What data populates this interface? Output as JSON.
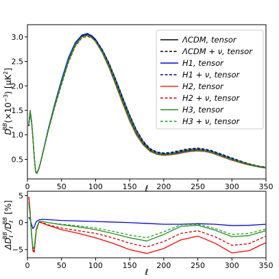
{
  "chart_data": [
    {
      "type": "line",
      "id": "top",
      "ylabel": "Dℓ^{BB}(×10⁻³) [μK²]",
      "ylabel_parts": {
        "main": "D",
        "sub": "ℓ",
        "sup": "BB",
        "rest": "(×10",
        "rest_sup": "−3",
        "rest2": ") [μK",
        "rest2_sup": "2",
        "rest3": "]"
      },
      "xlabel": "ℓ",
      "xlim": [
        0,
        350
      ],
      "ylim": [
        0.1,
        3.25
      ],
      "xticks": [
        0,
        50,
        100,
        150,
        200,
        250,
        300,
        350
      ],
      "yticks": [
        0.5,
        1.0,
        1.5,
        2.0,
        2.5,
        3.0
      ],
      "xtick_labels": [
        "0",
        "50",
        "100",
        "150",
        "200",
        "250",
        "300",
        "350"
      ],
      "ytick_labels": [
        "0.5",
        "1.0",
        "1.5",
        "2.0",
        "2.5",
        "3.0"
      ],
      "legend_position": "upper-right",
      "series": [
        {
          "name": "ΛCDM, tensor",
          "label_html": "ΛCDM, tensor",
          "color": "#000000",
          "dash": "solid",
          "x": [
            2,
            4,
            6,
            8,
            10,
            12,
            14,
            17,
            20,
            25,
            30,
            40,
            50,
            60,
            70,
            80,
            88,
            95,
            100,
            110,
            120,
            130,
            140,
            150,
            160,
            170,
            180,
            190,
            200,
            210,
            220,
            230,
            240,
            250,
            260,
            270,
            280,
            290,
            300,
            310,
            320,
            330,
            340,
            350
          ],
          "y": [
            1.18,
            1.45,
            1.28,
            0.95,
            0.55,
            0.25,
            0.22,
            0.32,
            0.48,
            0.78,
            1.08,
            1.62,
            2.1,
            2.55,
            2.86,
            3.02,
            3.05,
            3.0,
            2.93,
            2.7,
            2.4,
            2.05,
            1.68,
            1.33,
            1.03,
            0.82,
            0.68,
            0.62,
            0.6,
            0.61,
            0.63,
            0.66,
            0.68,
            0.69,
            0.68,
            0.65,
            0.6,
            0.55,
            0.5,
            0.45,
            0.41,
            0.38,
            0.35,
            0.33
          ]
        },
        {
          "name": "ΛCDM + ν, tensor",
          "color": "#000000",
          "dash": "dashed",
          "x": [
            2,
            4,
            6,
            8,
            10,
            12,
            14,
            17,
            20,
            25,
            30,
            40,
            50,
            60,
            70,
            80,
            88,
            95,
            100,
            110,
            120,
            130,
            140,
            150,
            160,
            170,
            180,
            190,
            200,
            210,
            220,
            230,
            240,
            250,
            260,
            270,
            280,
            290,
            300,
            310,
            320,
            330,
            340,
            350
          ],
          "y": [
            1.18,
            1.45,
            1.28,
            0.95,
            0.55,
            0.25,
            0.22,
            0.32,
            0.48,
            0.77,
            1.06,
            1.58,
            2.05,
            2.5,
            2.82,
            3.0,
            3.03,
            2.99,
            2.94,
            2.73,
            2.45,
            2.11,
            1.75,
            1.4,
            1.09,
            0.86,
            0.71,
            0.64,
            0.62,
            0.63,
            0.66,
            0.69,
            0.71,
            0.72,
            0.7,
            0.67,
            0.62,
            0.57,
            0.52,
            0.47,
            0.43,
            0.39,
            0.36,
            0.34
          ]
        },
        {
          "name": "H1, tensor",
          "color": "#0000ff",
          "dash": "solid",
          "x": [
            2,
            4,
            6,
            8,
            10,
            12,
            14,
            17,
            20,
            25,
            30,
            40,
            50,
            60,
            70,
            80,
            88,
            95,
            100,
            110,
            120,
            130,
            140,
            150,
            160,
            170,
            180,
            190,
            200,
            210,
            220,
            230,
            240,
            250,
            260,
            270,
            280,
            290,
            300,
            310,
            320,
            330,
            340,
            350
          ],
          "y": [
            1.19,
            1.46,
            1.28,
            0.95,
            0.55,
            0.25,
            0.22,
            0.32,
            0.48,
            0.78,
            1.09,
            1.63,
            2.12,
            2.57,
            2.88,
            3.04,
            3.07,
            3.02,
            2.95,
            2.72,
            2.42,
            2.07,
            1.7,
            1.34,
            1.04,
            0.83,
            0.69,
            0.63,
            0.61,
            0.62,
            0.64,
            0.67,
            0.69,
            0.7,
            0.69,
            0.66,
            0.61,
            0.56,
            0.51,
            0.46,
            0.42,
            0.38,
            0.35,
            0.33
          ]
        },
        {
          "name": "H1 + ν, tensor",
          "color": "#000080",
          "dash": "dashed",
          "x": [
            2,
            4,
            6,
            8,
            10,
            12,
            14,
            17,
            20,
            25,
            30,
            40,
            50,
            60,
            70,
            80,
            88,
            95,
            100,
            110,
            120,
            130,
            140,
            150,
            160,
            170,
            180,
            190,
            200,
            210,
            220,
            230,
            240,
            250,
            260,
            270,
            280,
            290,
            300,
            310,
            320,
            330,
            340,
            350
          ],
          "y": [
            1.19,
            1.46,
            1.28,
            0.95,
            0.55,
            0.25,
            0.22,
            0.32,
            0.48,
            0.77,
            1.07,
            1.59,
            2.06,
            2.51,
            2.83,
            3.01,
            3.04,
            3.0,
            2.95,
            2.74,
            2.46,
            2.12,
            1.76,
            1.41,
            1.1,
            0.87,
            0.72,
            0.65,
            0.63,
            0.64,
            0.67,
            0.7,
            0.72,
            0.73,
            0.71,
            0.68,
            0.63,
            0.58,
            0.53,
            0.48,
            0.43,
            0.39,
            0.36,
            0.34
          ]
        },
        {
          "name": "H2, tensor",
          "color": "#ff2020",
          "dash": "solid",
          "x": [
            2,
            4,
            6,
            8,
            10,
            12,
            14,
            17,
            20,
            25,
            30,
            40,
            50,
            60,
            70,
            80,
            88,
            95,
            100,
            110,
            120,
            130,
            140,
            150,
            160,
            170,
            180,
            190,
            200,
            210,
            220,
            230,
            240,
            250,
            260,
            270,
            280,
            290,
            300,
            310,
            320,
            330,
            340,
            350
          ],
          "y": [
            1.22,
            1.5,
            1.3,
            0.96,
            0.55,
            0.24,
            0.21,
            0.31,
            0.47,
            0.77,
            1.07,
            1.6,
            2.07,
            2.52,
            2.84,
            3.0,
            3.03,
            2.98,
            2.9,
            2.67,
            2.36,
            2.0,
            1.63,
            1.28,
            0.99,
            0.79,
            0.66,
            0.6,
            0.58,
            0.59,
            0.61,
            0.64,
            0.66,
            0.67,
            0.66,
            0.63,
            0.58,
            0.53,
            0.48,
            0.44,
            0.4,
            0.37,
            0.34,
            0.32
          ]
        },
        {
          "name": "H2 + ν, tensor",
          "color": "#cc0000",
          "dash": "dashed",
          "x": [
            2,
            4,
            6,
            8,
            10,
            12,
            14,
            17,
            20,
            25,
            30,
            40,
            50,
            60,
            70,
            80,
            88,
            95,
            100,
            110,
            120,
            130,
            140,
            150,
            160,
            170,
            180,
            190,
            200,
            210,
            220,
            230,
            240,
            250,
            260,
            270,
            280,
            290,
            300,
            310,
            320,
            330,
            340,
            350
          ],
          "y": [
            1.22,
            1.5,
            1.3,
            0.96,
            0.55,
            0.24,
            0.21,
            0.31,
            0.47,
            0.76,
            1.05,
            1.56,
            2.02,
            2.47,
            2.8,
            2.98,
            3.01,
            2.97,
            2.91,
            2.7,
            2.41,
            2.06,
            1.69,
            1.34,
            1.05,
            0.83,
            0.69,
            0.62,
            0.6,
            0.61,
            0.64,
            0.67,
            0.69,
            0.7,
            0.68,
            0.65,
            0.6,
            0.55,
            0.5,
            0.46,
            0.42,
            0.38,
            0.35,
            0.33
          ]
        },
        {
          "name": "H3, tensor",
          "color": "#209020",
          "dash": "solid",
          "x": [
            2,
            4,
            6,
            8,
            10,
            12,
            14,
            17,
            20,
            25,
            30,
            40,
            50,
            60,
            70,
            80,
            88,
            95,
            100,
            110,
            120,
            130,
            140,
            150,
            160,
            170,
            180,
            190,
            200,
            210,
            220,
            230,
            240,
            250,
            260,
            270,
            280,
            290,
            300,
            310,
            320,
            330,
            340,
            350
          ],
          "y": [
            1.21,
            1.49,
            1.29,
            0.95,
            0.55,
            0.24,
            0.21,
            0.31,
            0.47,
            0.77,
            1.07,
            1.61,
            2.08,
            2.53,
            2.85,
            3.01,
            3.04,
            2.99,
            2.91,
            2.68,
            2.38,
            2.02,
            1.65,
            1.3,
            1.01,
            0.8,
            0.67,
            0.61,
            0.59,
            0.6,
            0.62,
            0.65,
            0.67,
            0.68,
            0.67,
            0.64,
            0.59,
            0.54,
            0.49,
            0.45,
            0.41,
            0.37,
            0.35,
            0.32
          ]
        },
        {
          "name": "H3 + ν, tensor",
          "color": "#20a020",
          "dash": "dashed",
          "x": [
            2,
            4,
            6,
            8,
            10,
            12,
            14,
            17,
            20,
            25,
            30,
            40,
            50,
            60,
            70,
            80,
            88,
            95,
            100,
            110,
            120,
            130,
            140,
            150,
            160,
            170,
            180,
            190,
            200,
            210,
            220,
            230,
            240,
            250,
            260,
            270,
            280,
            290,
            300,
            310,
            320,
            330,
            340,
            350
          ],
          "y": [
            1.21,
            1.49,
            1.29,
            0.95,
            0.55,
            0.24,
            0.21,
            0.31,
            0.47,
            0.76,
            1.05,
            1.57,
            2.03,
            2.48,
            2.81,
            2.99,
            3.02,
            2.98,
            2.92,
            2.71,
            2.43,
            2.08,
            1.71,
            1.36,
            1.06,
            0.84,
            0.7,
            0.63,
            0.61,
            0.62,
            0.65,
            0.68,
            0.7,
            0.71,
            0.69,
            0.66,
            0.61,
            0.56,
            0.51,
            0.47,
            0.43,
            0.39,
            0.36,
            0.33
          ]
        }
      ]
    },
    {
      "type": "line",
      "id": "bottom",
      "ylabel": "ΔDℓ^{BB}/Dℓ^{BB} [%]",
      "ylabel_parts": {
        "pre": "ΔD",
        "sub": "ℓ",
        "sup": "BB",
        "mid": "/D",
        "sub2": "ℓ",
        "sup2": "BB",
        "post": " [%]"
      },
      "xlabel": "ℓ",
      "xlim": [
        0,
        350
      ],
      "ylim": [
        -6.5,
        5.8
      ],
      "xticks": [
        0,
        50,
        100,
        150,
        200,
        250,
        300,
        350
      ],
      "yticks": [
        -5,
        0,
        5
      ],
      "xtick_labels": [
        "0",
        "50",
        "100",
        "150",
        "200",
        "250",
        "300",
        "350"
      ],
      "ytick_labels": [
        "−5",
        "0",
        "5"
      ],
      "series": [
        {
          "name": "H1",
          "color": "#0000ff",
          "dash": "solid",
          "x": [
            2,
            4,
            6,
            8,
            10,
            13,
            17,
            22,
            30,
            50,
            75,
            100,
            125,
            150,
            175,
            200,
            225,
            250,
            275,
            300,
            325,
            350
          ],
          "y": [
            1.0,
            0.6,
            -0.3,
            -1.1,
            -0.8,
            0.2,
            0.5,
            0.6,
            0.55,
            0.4,
            0.3,
            0.2,
            0.1,
            0.0,
            -0.15,
            -0.3,
            -0.3,
            -0.2,
            -0.3,
            -0.55,
            -0.5,
            -0.3
          ]
        },
        {
          "name": "H2",
          "color": "#ff0000",
          "dash": "solid",
          "x": [
            2,
            4,
            6,
            8,
            10,
            13,
            17,
            22,
            30,
            50,
            75,
            100,
            125,
            150,
            175,
            200,
            225,
            250,
            275,
            300,
            325,
            350
          ],
          "y": [
            4.8,
            2.0,
            -2.0,
            -5.2,
            -5.5,
            -1.5,
            0.1,
            -0.1,
            -0.5,
            -1.3,
            -2.0,
            -2.8,
            -3.8,
            -5.0,
            -5.7,
            -4.8,
            -3.2,
            -2.5,
            -3.8,
            -5.6,
            -5.2,
            -3.7
          ]
        },
        {
          "name": "H2 + ν",
          "color": "#cc0000",
          "dash": "dashed",
          "x": [
            2,
            4,
            6,
            8,
            10,
            13,
            17,
            22,
            30,
            50,
            75,
            100,
            125,
            150,
            175,
            200,
            225,
            250,
            275,
            300,
            325,
            350
          ],
          "y": [
            4.7,
            1.9,
            -2.0,
            -5.1,
            -5.3,
            -1.4,
            0.1,
            0.0,
            -0.4,
            -1.0,
            -1.5,
            -2.0,
            -2.8,
            -3.8,
            -4.5,
            -3.5,
            -2.0,
            -1.5,
            -2.6,
            -4.2,
            -3.9,
            -2.5
          ]
        },
        {
          "name": "H3",
          "color": "#209020",
          "dash": "solid",
          "x": [
            2,
            4,
            6,
            8,
            10,
            13,
            17,
            22,
            30,
            50,
            75,
            100,
            125,
            150,
            175,
            200,
            225,
            250,
            275,
            300,
            325,
            350
          ],
          "y": [
            3.8,
            1.5,
            -2.2,
            -4.6,
            -4.9,
            -1.2,
            0.2,
            0.2,
            0.0,
            -0.4,
            -0.8,
            -1.3,
            -2.0,
            -2.8,
            -3.4,
            -2.2,
            -0.7,
            -0.5,
            -1.4,
            -2.6,
            -2.4,
            -1.5
          ]
        },
        {
          "name": "H3 + ν",
          "color": "#20a020",
          "dash": "dashed",
          "x": [
            2,
            4,
            6,
            8,
            10,
            13,
            17,
            22,
            30,
            50,
            75,
            100,
            125,
            150,
            175,
            200,
            225,
            250,
            275,
            300,
            325,
            350
          ],
          "y": [
            3.7,
            1.4,
            -2.2,
            -4.5,
            -4.7,
            -1.1,
            0.2,
            0.2,
            0.0,
            -0.3,
            -0.6,
            -1.0,
            -1.6,
            -2.3,
            -2.8,
            -1.7,
            -0.4,
            -0.3,
            -1.1,
            -2.2,
            -2.0,
            -1.2
          ]
        }
      ]
    }
  ]
}
